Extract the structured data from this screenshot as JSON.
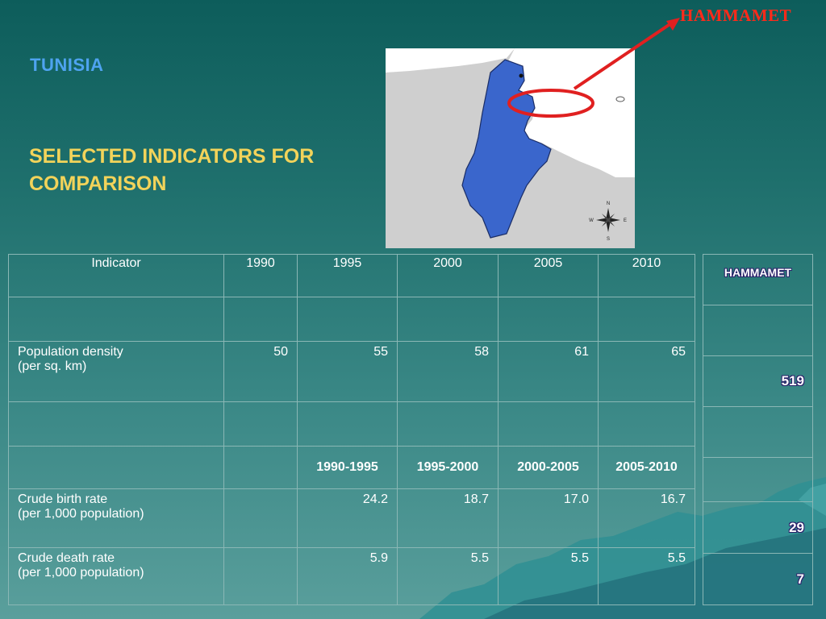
{
  "slide": {
    "title": "TUNISIA",
    "subtitle": "SELECTED INDICATORS FOR COMPARISON",
    "callout_label": "HAMMAMET"
  },
  "map": {
    "compass": {
      "n": "N",
      "s": "S",
      "e": "E",
      "w": "W"
    },
    "country_color": "#3a66cc",
    "sea_color": "#ffffff",
    "land_color": "#cfcfcf",
    "marker_color": "#e02020"
  },
  "table": {
    "header": {
      "indicator": "Indicator",
      "years": [
        "1990",
        "1995",
        "2000",
        "2005",
        "2010"
      ]
    },
    "population_density": {
      "label": "Population density",
      "unit": "(per sq. km)",
      "values": [
        "50",
        "55",
        "58",
        "61",
        "65"
      ]
    },
    "periods": [
      "1990-1995",
      "1995-2000",
      "2000-2005",
      "2005-2010"
    ],
    "crude_birth_rate": {
      "label": "Crude birth rate",
      "unit": "(per 1,000 population)",
      "values": [
        "24.2",
        "18.7",
        "17.0",
        "16.7"
      ]
    },
    "crude_death_rate": {
      "label": "Crude death rate",
      "unit": "(per 1,000 population)",
      "values": [
        "5.9",
        "5.5",
        "5.5",
        "5.5"
      ]
    }
  },
  "side_table": {
    "header": "HAMMAMET",
    "population_density": "519",
    "crude_birth_rate": "29",
    "crude_death_rate": "7"
  }
}
